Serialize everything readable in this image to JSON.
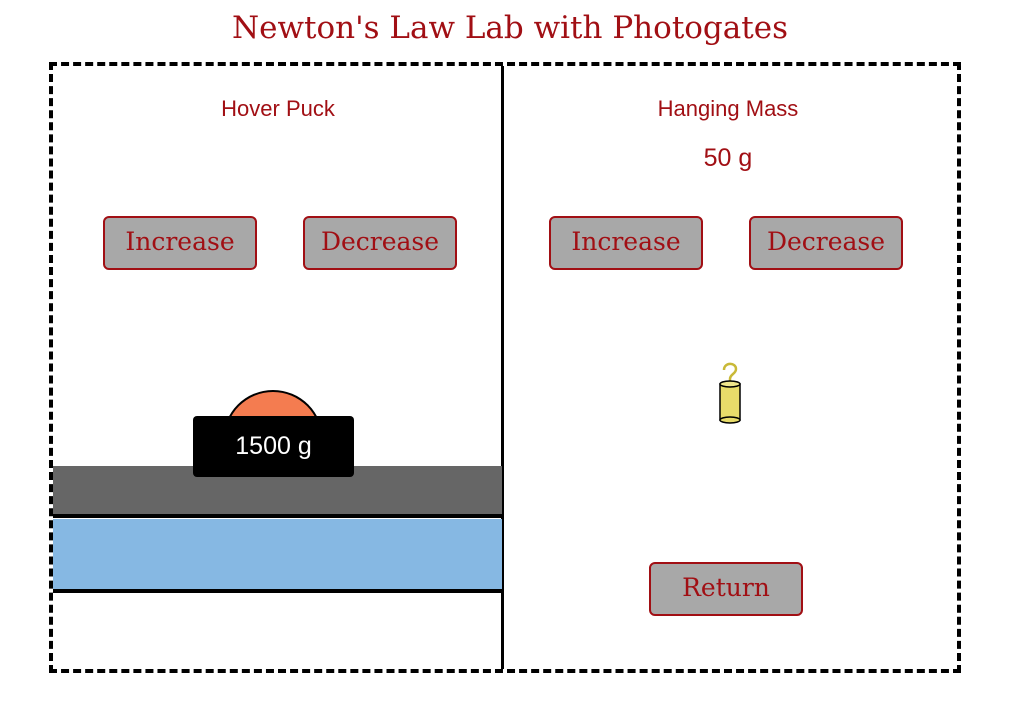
{
  "title": "Newton's Law Lab with Photogates",
  "left_panel": {
    "label": "Hover Puck",
    "increase_label": "Increase",
    "decrease_label": "Decrease",
    "puck_mass": "1500 g"
  },
  "right_panel": {
    "label": "Hanging Mass",
    "mass_value": "50 g",
    "increase_label": "Increase",
    "decrease_label": "Decrease",
    "return_label": "Return"
  },
  "colors": {
    "text_accent": "#a10f14",
    "button_bg": "#a8a8a8",
    "puck_dome": "#f47c50",
    "track_gray": "#666666",
    "water_blue": "#86b8e3",
    "weight_yellow": "#e8dc6a"
  },
  "icons": {
    "hanging_weight": "hanging-weight-icon"
  }
}
